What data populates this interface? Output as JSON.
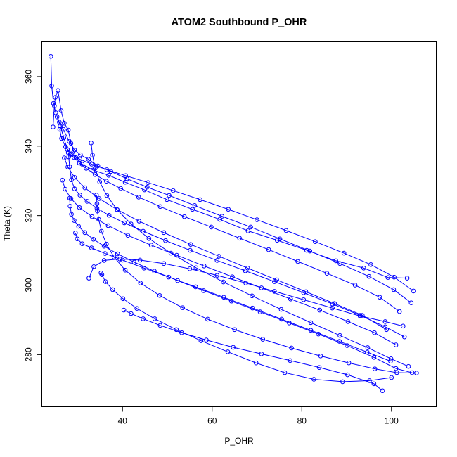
{
  "chart_data": {
    "type": "line",
    "title": "ATOM2 Southbound P_OHR",
    "xlabel": "P_OHR",
    "ylabel": "Theta (K)",
    "xlim": [
      22,
      110
    ],
    "ylim": [
      265,
      370
    ],
    "x_ticks": [
      40,
      60,
      80,
      100
    ],
    "y_ticks": [
      280,
      300,
      320,
      340,
      360
    ],
    "grid": false,
    "legend": "none",
    "series_color": "#0000ff",
    "marker": "open-circle",
    "series": [
      {
        "x": [
          24.5,
          24.8,
          25.0,
          25.6,
          26.3,
          27.0,
          27.9,
          28.5,
          29.6,
          31.0,
          33.4,
          36.9,
          40.6,
          44.9,
          49.9,
          55.6,
          61.7,
          68.0,
          74.5,
          81.1,
          87.6,
          93.8,
          99.2,
          103.5
        ],
        "y": [
          345.5,
          351.6,
          354.0,
          356.0,
          350.2,
          346.6,
          344.6,
          340.8,
          336.7,
          334.8,
          333.1,
          331.6,
          329.6,
          327.4,
          324.6,
          321.8,
          318.9,
          315.6,
          312.9,
          310.0,
          307.0,
          304.9,
          302.2,
          302.0
        ]
      },
      {
        "x": [
          24.0,
          24.2,
          24.6,
          25.1,
          25.9,
          26.8,
          28.1,
          29.3,
          30.6,
          32.4,
          34.5,
          37.4,
          41.0,
          45.5,
          50.4,
          56.1,
          62.2,
          68.6,
          75.1,
          81.8,
          88.5,
          95.0,
          100.5,
          104.4
        ],
        "y": [
          365.8,
          357.3,
          352.3,
          349.6,
          346.9,
          344.8,
          341.4,
          338.9,
          337.5,
          336.2,
          334.3,
          332.7,
          330.6,
          328.2,
          325.8,
          322.9,
          319.8,
          316.7,
          313.3,
          309.8,
          306.2,
          302.5,
          298.7,
          294.9
        ]
      },
      {
        "x": [
          25.4,
          26.1,
          26.9,
          27.7,
          28.4,
          29.2,
          30.4,
          31.9,
          33.9,
          36.4,
          39.6,
          43.6,
          48.4,
          53.8,
          59.8,
          66.1,
          72.6,
          79.1,
          85.6,
          91.9,
          97.4,
          101.8
        ],
        "y": [
          348.4,
          345.8,
          342.4,
          339.0,
          337.6,
          336.7,
          335.1,
          333.6,
          331.8,
          329.9,
          327.8,
          325.3,
          322.6,
          319.7,
          316.7,
          313.5,
          310.2,
          306.8,
          303.4,
          300.0,
          296.5,
          292.4
        ]
      },
      {
        "x": [
          27.9,
          28.0,
          28.2,
          28.6,
          29.3,
          30.5,
          32.1,
          34.3,
          37.0,
          40.4,
          44.6,
          49.6,
          55.1,
          61.1,
          67.4,
          73.9,
          80.4,
          86.8,
          93.0,
          98.6,
          102.9
        ],
        "y": [
          338.1,
          336.9,
          334.1,
          330.3,
          327.7,
          325.9,
          324.1,
          322.1,
          320.1,
          317.9,
          315.5,
          312.8,
          310.0,
          307.1,
          304.1,
          301.0,
          297.8,
          294.6,
          291.3,
          288.0,
          285.1
        ]
      },
      {
        "x": [
          28.2,
          28.3,
          28.6,
          29.2,
          30.2,
          31.6,
          33.5,
          35.9,
          38.9,
          42.6,
          47.1,
          52.3,
          58.1,
          64.3,
          70.7,
          77.2,
          83.7,
          90.1,
          96.1,
          101.0,
          104.6
        ],
        "y": [
          325.0,
          322.7,
          320.4,
          318.6,
          316.9,
          315.1,
          313.2,
          311.2,
          309.0,
          306.6,
          304.0,
          301.3,
          298.4,
          295.4,
          292.3,
          289.1,
          285.9,
          282.6,
          279.2,
          276.0,
          274.8
        ]
      },
      {
        "x": [
          34.2,
          34.3,
          34.4,
          34.7,
          35.3,
          36.4,
          38.1,
          40.6,
          44.0,
          48.3,
          53.4,
          59.0,
          65.0,
          71.3,
          77.7,
          84.2,
          90.5,
          96.3,
          101.2,
          105.6
        ],
        "y": [
          325.9,
          323.4,
          321.3,
          318.9,
          315.5,
          311.8,
          308.1,
          304.3,
          300.6,
          297.0,
          293.5,
          290.2,
          287.2,
          284.4,
          281.9,
          279.6,
          277.6,
          275.9,
          274.8,
          274.7
        ]
      },
      {
        "x": [
          33.0,
          33.3,
          33.9,
          34.9,
          36.5,
          38.8,
          41.9,
          45.9,
          50.8,
          56.4,
          62.5,
          68.9,
          75.4,
          82.0,
          88.5,
          94.7,
          99.9,
          103.8
        ],
        "y": [
          340.9,
          337.4,
          333.6,
          329.7,
          325.8,
          321.7,
          317.6,
          313.4,
          309.2,
          305.0,
          300.9,
          296.9,
          293.0,
          289.2,
          285.5,
          282.0,
          278.8,
          276.6
        ]
      },
      {
        "x": [
          35.2,
          35.4,
          36.2,
          37.8,
          40.1,
          43.2,
          47.2,
          52.0,
          57.5,
          63.5,
          69.8,
          76.2,
          82.7,
          89.1,
          95.1,
          100.0
        ],
        "y": [
          303.5,
          303.0,
          301.0,
          298.7,
          296.1,
          293.3,
          290.3,
          287.2,
          284.0,
          280.8,
          277.6,
          274.8,
          272.9,
          272.2,
          272.5,
          273.4
        ]
      },
      {
        "x": [
          40.3,
          41.9,
          44.6,
          48.4,
          53.2,
          58.7,
          64.7,
          71.0,
          77.4,
          83.9,
          90.2,
          96.1,
          98.0
        ],
        "y": [
          292.8,
          291.8,
          290.3,
          288.4,
          286.3,
          284.2,
          282.1,
          280.2,
          278.3,
          276.3,
          274.2,
          271.6,
          269.6
        ]
      },
      {
        "x": [
          32.5,
          33.6,
          35.9,
          39.4,
          43.9,
          49.2,
          55.0,
          61.1,
          67.5,
          73.9,
          80.4,
          86.8,
          93.0,
          98.6,
          102.6
        ],
        "y": [
          302.0,
          305.3,
          307.1,
          307.5,
          307.2,
          306.2,
          304.7,
          302.8,
          300.6,
          298.2,
          295.8,
          293.4,
          291.1,
          289.5,
          288.2
        ]
      },
      {
        "x": [
          26.6,
          27.2,
          28.5,
          30.4,
          33.2,
          36.8,
          41.2,
          46.4,
          52.1,
          58.2,
          64.5,
          71.0,
          77.5,
          84.0,
          90.3,
          96.2,
          101.0
        ],
        "y": [
          330.2,
          327.6,
          324.9,
          322.3,
          319.7,
          317.1,
          314.3,
          311.5,
          308.6,
          305.5,
          302.4,
          299.2,
          296.0,
          292.8,
          289.5,
          286.3,
          282.8
        ]
      },
      {
        "x": [
          26.0,
          26.4,
          27.3,
          28.6,
          30.5,
          33.1,
          36.5,
          40.7,
          45.7,
          51.3,
          57.3,
          63.6,
          70.0,
          76.5,
          83.0,
          89.4,
          95.4,
          100.6,
          104.9
        ],
        "y": [
          344.8,
          342.2,
          339.8,
          337.8,
          336.2,
          334.8,
          333.2,
          331.5,
          329.5,
          327.2,
          324.6,
          321.8,
          318.8,
          315.7,
          312.5,
          309.2,
          305.9,
          302.3,
          298.3
        ]
      },
      {
        "x": [
          27.0,
          27.8,
          29.3,
          31.6,
          34.8,
          38.8,
          43.7,
          49.2,
          55.2,
          61.5,
          67.9,
          74.4,
          80.9,
          87.3,
          93.5,
          98.9
        ],
        "y": [
          336.6,
          334.0,
          331.0,
          328.0,
          324.9,
          321.7,
          318.4,
          315.1,
          311.7,
          308.3,
          304.9,
          301.5,
          298.1,
          294.7,
          291.3,
          287.2
        ]
      },
      {
        "x": [
          29.5,
          29.9,
          31.0,
          33.1,
          36.1,
          40.0,
          44.8,
          50.3,
          56.3,
          62.6,
          69.0,
          75.5,
          82.0,
          88.4,
          94.6,
          99.8
        ],
        "y": [
          315.0,
          313.3,
          311.9,
          310.7,
          309.1,
          307.2,
          304.9,
          302.3,
          299.5,
          296.5,
          293.4,
          290.2,
          287.0,
          283.8,
          280.7,
          278.1
        ]
      }
    ]
  }
}
